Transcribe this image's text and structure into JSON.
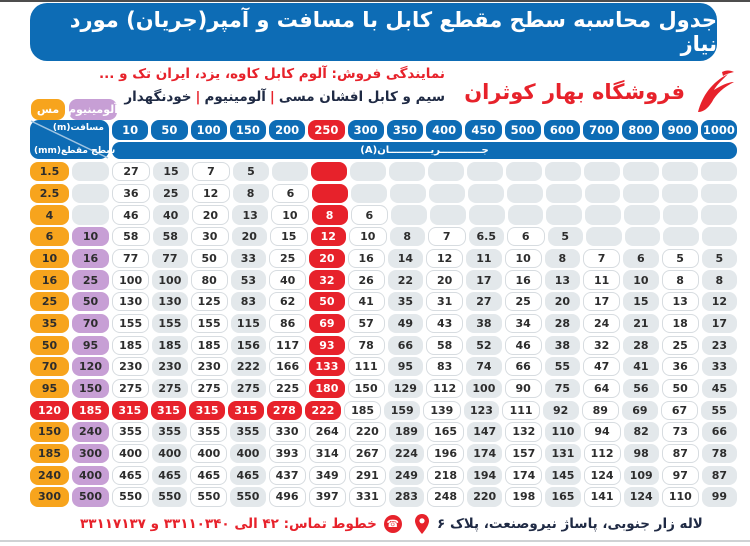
{
  "title": "جدول محاسبه سطح مقطع کابل با مسافت و آمپر(جریان) مورد نیاز",
  "header": {
    "store_name": "فروشگاه بهار کوثران",
    "agency_line": "نمایندگی فروش: آلوم کابل کاوه، یزد، ایران تک و ...",
    "products": [
      "سیم و کابل افشان مسی",
      "آلومینیوم",
      "خودنگهدار"
    ],
    "products_separator": "|"
  },
  "legend": {
    "copper": "مس",
    "aluminum": "آلومینیوم"
  },
  "table": {
    "corner_top": "مسافت(m)",
    "corner_bottom": "سطح مقطع(mm)",
    "current_label": "جــــــــــــریــــــــــــان(A)",
    "distances": [
      "10",
      "50",
      "100",
      "150",
      "200",
      "250",
      "300",
      "350",
      "400",
      "450",
      "500",
      "600",
      "700",
      "800",
      "900",
      "1000"
    ],
    "highlight_distance": "250",
    "rows": [
      {
        "cu": "1.5",
        "al": "",
        "values": [
          "27",
          "15",
          "7",
          "5",
          "",
          "",
          "",
          "",
          "",
          "",
          "",
          "",
          "",
          "",
          "",
          ""
        ]
      },
      {
        "cu": "2.5",
        "al": "",
        "values": [
          "36",
          "25",
          "12",
          "8",
          "6",
          "",
          "",
          "",
          "",
          "",
          "",
          "",
          "",
          "",
          "",
          ""
        ]
      },
      {
        "cu": "4",
        "al": "",
        "values": [
          "46",
          "40",
          "20",
          "13",
          "10",
          "8",
          "6",
          "",
          "",
          "",
          "",
          "",
          "",
          "",
          "",
          ""
        ]
      },
      {
        "cu": "6",
        "al": "10",
        "values": [
          "58",
          "58",
          "30",
          "20",
          "15",
          "12",
          "10",
          "8",
          "7",
          "6.5",
          "6",
          "5",
          "",
          "",
          "",
          ""
        ]
      },
      {
        "cu": "10",
        "al": "16",
        "values": [
          "77",
          "77",
          "50",
          "33",
          "25",
          "20",
          "16",
          "14",
          "12",
          "11",
          "10",
          "8",
          "7",
          "6",
          "5",
          "5"
        ]
      },
      {
        "cu": "16",
        "al": "25",
        "values": [
          "100",
          "100",
          "80",
          "53",
          "40",
          "32",
          "26",
          "22",
          "20",
          "17",
          "16",
          "13",
          "11",
          "10",
          "8",
          "8"
        ]
      },
      {
        "cu": "25",
        "al": "50",
        "values": [
          "130",
          "130",
          "125",
          "83",
          "62",
          "50",
          "41",
          "35",
          "31",
          "27",
          "25",
          "20",
          "17",
          "15",
          "13",
          "12"
        ]
      },
      {
        "cu": "35",
        "al": "70",
        "values": [
          "155",
          "155",
          "155",
          "115",
          "86",
          "69",
          "57",
          "49",
          "43",
          "38",
          "34",
          "28",
          "24",
          "21",
          "18",
          "17"
        ]
      },
      {
        "cu": "50",
        "al": "95",
        "values": [
          "185",
          "185",
          "185",
          "156",
          "117",
          "93",
          "78",
          "66",
          "58",
          "52",
          "46",
          "38",
          "32",
          "28",
          "25",
          "23"
        ]
      },
      {
        "cu": "70",
        "al": "120",
        "values": [
          "230",
          "230",
          "230",
          "222",
          "166",
          "133",
          "111",
          "95",
          "83",
          "74",
          "66",
          "55",
          "47",
          "41",
          "36",
          "33"
        ]
      },
      {
        "cu": "95",
        "al": "150",
        "values": [
          "275",
          "275",
          "275",
          "275",
          "225",
          "180",
          "150",
          "129",
          "112",
          "100",
          "90",
          "75",
          "64",
          "56",
          "50",
          "45"
        ]
      },
      {
        "cu": "120",
        "al": "185",
        "highlight": true,
        "values": [
          "315",
          "315",
          "315",
          "315",
          "278",
          "222",
          "185",
          "159",
          "139",
          "123",
          "111",
          "92",
          "89",
          "69",
          "67",
          "55"
        ]
      },
      {
        "cu": "150",
        "al": "240",
        "values": [
          "355",
          "355",
          "355",
          "355",
          "330",
          "264",
          "220",
          "189",
          "165",
          "147",
          "132",
          "110",
          "94",
          "82",
          "73",
          "66"
        ]
      },
      {
        "cu": "185",
        "al": "300",
        "values": [
          "400",
          "400",
          "400",
          "400",
          "393",
          "314",
          "267",
          "224",
          "196",
          "174",
          "157",
          "131",
          "112",
          "98",
          "87",
          "78"
        ]
      },
      {
        "cu": "240",
        "al": "400",
        "values": [
          "465",
          "465",
          "465",
          "465",
          "437",
          "349",
          "291",
          "249",
          "218",
          "194",
          "174",
          "145",
          "124",
          "109",
          "97",
          "87"
        ]
      },
      {
        "cu": "300",
        "al": "500",
        "values": [
          "550",
          "550",
          "550",
          "550",
          "496",
          "397",
          "331",
          "283",
          "248",
          "220",
          "198",
          "165",
          "141",
          "124",
          "110",
          "99"
        ]
      }
    ]
  },
  "footer": {
    "phone_line": "خطوط تماس: ۴۲ الی ۳۳۱۱۰۳۴۰ و ۳۳۱۱۷۱۳۷",
    "address": "لاله زار جنوبی، پاساژ نیروصنعت، پلاک ۶",
    "phone_icon_glyph": "☎"
  },
  "colors": {
    "blue": "#0d6cb5",
    "red": "#e7222b",
    "orange": "#f7a41d",
    "purple": "#c79fd5",
    "cell_gray": "#e3e8eb",
    "navy_text": "#1f2a44"
  }
}
